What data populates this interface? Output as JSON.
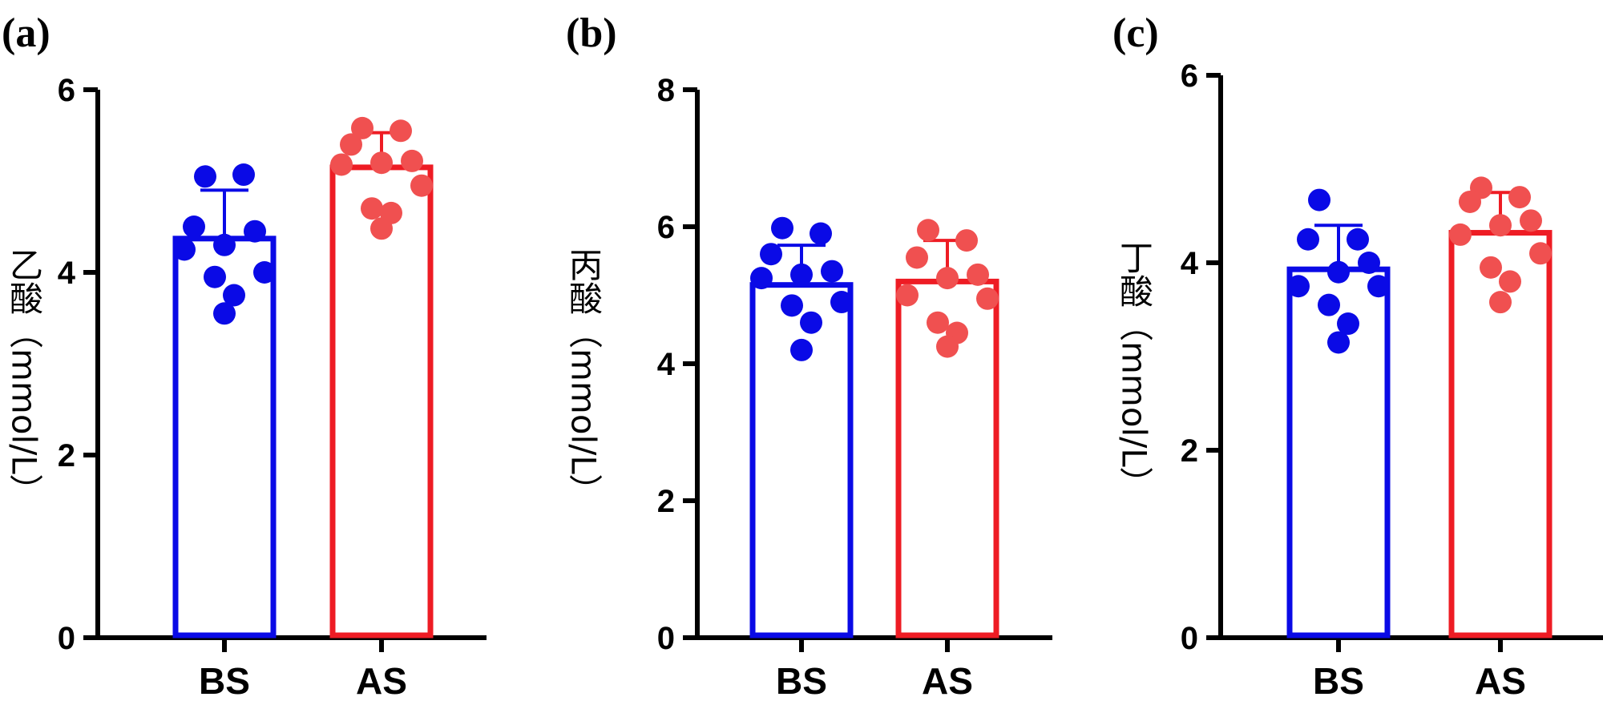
{
  "colors": {
    "BS": "#0a0ae6",
    "AS": "#ee1c24",
    "AS_points": "#f05050",
    "axis": "#000000"
  },
  "chart_data": [
    {
      "type": "bar",
      "panel_label": "(a)",
      "ylabel": "乙酸（mmol/L）",
      "categories": [
        "BS",
        "AS"
      ],
      "values": [
        4.37,
        5.15
      ],
      "error": [
        0.53,
        0.38
      ],
      "points": {
        "BS": [
          5.05,
          5.07,
          4.5,
          4.45,
          4.3,
          4.25,
          4.0,
          3.95,
          3.75,
          3.55
        ],
        "AS": [
          5.58,
          5.55,
          5.4,
          5.22,
          5.2,
          5.18,
          4.95,
          4.7,
          4.65,
          4.48
        ]
      },
      "ylim": [
        0,
        6
      ],
      "yticks": [
        0,
        2,
        4,
        6
      ]
    },
    {
      "type": "bar",
      "panel_label": "(b)",
      "ylabel": "丙酸（mmol/L）",
      "categories": [
        "BS",
        "AS"
      ],
      "values": [
        5.15,
        5.2
      ],
      "error": [
        0.58,
        0.6
      ],
      "points": {
        "BS": [
          5.98,
          5.9,
          5.6,
          5.35,
          5.3,
          5.25,
          4.9,
          4.85,
          4.6,
          4.2
        ],
        "AS": [
          5.95,
          5.8,
          5.55,
          5.3,
          5.25,
          5.0,
          4.95,
          4.6,
          4.45,
          4.25
        ]
      },
      "ylim": [
        0,
        8
      ],
      "yticks": [
        0,
        2,
        4,
        6,
        8
      ]
    },
    {
      "type": "bar",
      "panel_label": "(c)",
      "ylabel": "丁酸（mmol/L）",
      "categories": [
        "BS",
        "AS"
      ],
      "values": [
        3.93,
        4.32
      ],
      "error": [
        0.47,
        0.43
      ],
      "points": {
        "BS": [
          4.67,
          4.25,
          4.25,
          4.0,
          3.9,
          3.75,
          3.75,
          3.55,
          3.35,
          3.15
        ],
        "AS": [
          4.8,
          4.7,
          4.65,
          4.45,
          4.4,
          4.3,
          4.1,
          3.95,
          3.8,
          3.58
        ]
      },
      "ylim": [
        0,
        6
      ],
      "yticks": [
        0,
        2,
        4,
        6
      ]
    }
  ]
}
